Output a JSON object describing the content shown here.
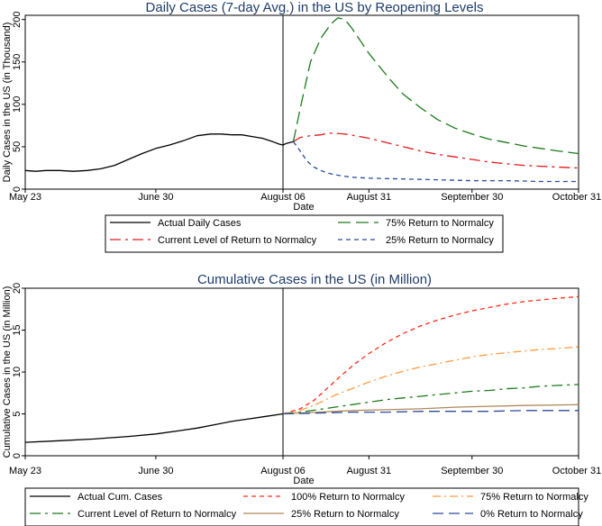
{
  "chart_data": [
    {
      "type": "line",
      "title": "Daily Cases (7-day Avg.) in the US by Reopening Levels",
      "xlabel": "Date",
      "ylabel": "Daily Cases in the US (in Thousand)",
      "x_ticks": [
        {
          "label": "May 23",
          "day": 0
        },
        {
          "label": "June 30",
          "day": 38
        },
        {
          "label": "August 06",
          "day": 75
        },
        {
          "label": "August 31",
          "day": 100
        },
        {
          "label": "September 30",
          "day": 130
        },
        {
          "label": "October 31",
          "day": 161
        }
      ],
      "y_ticks": [
        0,
        50,
        100,
        150,
        200
      ],
      "xlim": [
        0,
        161
      ],
      "ylim": [
        0,
        205
      ],
      "reference_line_day": 75,
      "grid": false,
      "legend_position": "bottom",
      "series": [
        {
          "name": "Actual Daily Cases",
          "color": "#000000",
          "dash": "",
          "x": [
            0,
            3,
            6,
            10,
            14,
            18,
            22,
            26,
            30,
            34,
            38,
            42,
            46,
            50,
            54,
            57,
            60,
            63,
            66,
            69,
            72,
            74,
            75,
            76,
            77,
            78
          ],
          "y": [
            22,
            21,
            22,
            22,
            21,
            22,
            24,
            28,
            35,
            42,
            48,
            52,
            57,
            63,
            65,
            65,
            64,
            64,
            62,
            60,
            56,
            53,
            52,
            54,
            55,
            56
          ]
        },
        {
          "name": "Current Level of Return to Normalcy",
          "color": "#e41a1c",
          "dash": "12 5 3 5",
          "x": [
            78,
            80,
            83,
            86,
            88,
            90,
            93,
            96,
            100,
            105,
            110,
            115,
            120,
            125,
            130,
            135,
            140,
            145,
            150,
            155,
            161
          ],
          "y": [
            56,
            61,
            63,
            64,
            66,
            66,
            65,
            63,
            60,
            55,
            50,
            45,
            41,
            38,
            35,
            32,
            30,
            28,
            27,
            26,
            25
          ]
        },
        {
          "name": "75% Return to Normalcy",
          "color": "#1a7a1a",
          "dash": "14 6",
          "x": [
            78,
            80,
            83,
            86,
            89,
            91,
            93,
            95,
            97,
            100,
            103,
            106,
            110,
            115,
            120,
            125,
            130,
            135,
            140,
            145,
            150,
            155,
            161
          ],
          "y": [
            56,
            95,
            150,
            178,
            195,
            202,
            200,
            190,
            178,
            160,
            145,
            130,
            112,
            96,
            82,
            72,
            65,
            59,
            55,
            51,
            48,
            45,
            42
          ]
        },
        {
          "name": "25% Return to Normalcy",
          "color": "#2b4c9c",
          "dash": "5 4",
          "x": [
            78,
            80,
            82,
            84,
            86,
            88,
            90,
            95,
            100,
            110,
            120,
            130,
            140,
            150,
            161
          ],
          "y": [
            56,
            45,
            33,
            26,
            22,
            19,
            17,
            14,
            13,
            12,
            11,
            10,
            10,
            9,
            9
          ]
        }
      ],
      "legend_rows": [
        [
          "Actual Daily Cases",
          "75% Return to Normalcy"
        ],
        [
          "Current Level of Return to Normalcy",
          "25% Return to Normalcy"
        ]
      ]
    },
    {
      "type": "line",
      "title": "Cumulative Cases in the US (in Million)",
      "xlabel": "Date",
      "ylabel": "Cumulative Cases in the US (in Million)",
      "x_ticks": [
        {
          "label": "May 23",
          "day": 0
        },
        {
          "label": "June 30",
          "day": 38
        },
        {
          "label": "August 06",
          "day": 75
        },
        {
          "label": "August 31",
          "day": 100
        },
        {
          "label": "September 30",
          "day": 130
        },
        {
          "label": "October 31",
          "day": 161
        }
      ],
      "y_ticks": [
        0,
        5,
        10,
        15,
        20
      ],
      "xlim": [
        0,
        161
      ],
      "ylim": [
        0,
        20
      ],
      "reference_line_day": 75,
      "grid": false,
      "legend_position": "bottom",
      "series": [
        {
          "name": "Actual Cum. Cases",
          "color": "#000000",
          "dash": "",
          "x": [
            0,
            10,
            20,
            30,
            38,
            45,
            50,
            55,
            60,
            65,
            70,
            75
          ],
          "y": [
            1.6,
            1.8,
            2.0,
            2.3,
            2.6,
            3.0,
            3.3,
            3.7,
            4.1,
            4.4,
            4.7,
            5.0
          ]
        },
        {
          "name": "100% Return to Normalcy",
          "color": "#ff2a1a",
          "dash": "5 4",
          "x": [
            75,
            80,
            84,
            88,
            92,
            96,
            100,
            105,
            110,
            115,
            120,
            125,
            130,
            135,
            140,
            145,
            150,
            155,
            161
          ],
          "y": [
            5.0,
            5.6,
            6.6,
            8.1,
            9.6,
            11.0,
            12.2,
            13.5,
            14.6,
            15.5,
            16.2,
            16.8,
            17.3,
            17.7,
            18.1,
            18.4,
            18.6,
            18.8,
            19.0
          ]
        },
        {
          "name": "75% Return to Normalcy",
          "color": "#ff9a3c",
          "dash": "9 4 2 4",
          "x": [
            75,
            80,
            85,
            90,
            95,
            100,
            105,
            110,
            115,
            120,
            125,
            130,
            135,
            140,
            145,
            150,
            155,
            161
          ],
          "y": [
            5.0,
            5.4,
            6.2,
            7.2,
            8.0,
            8.8,
            9.5,
            10.1,
            10.6,
            11.0,
            11.4,
            11.8,
            12.1,
            12.3,
            12.5,
            12.7,
            12.8,
            13.0
          ]
        },
        {
          "name": "Current Level of Return to Normalcy",
          "color": "#1a7a1a",
          "dash": "12 5 3 5",
          "x": [
            75,
            80,
            85,
            90,
            95,
            100,
            105,
            110,
            115,
            120,
            125,
            130,
            135,
            140,
            145,
            150,
            155,
            161
          ],
          "y": [
            5.0,
            5.2,
            5.5,
            5.8,
            6.1,
            6.4,
            6.7,
            6.9,
            7.1,
            7.3,
            7.5,
            7.7,
            7.8,
            8.0,
            8.1,
            8.3,
            8.4,
            8.5
          ]
        },
        {
          "name": "25% Return to Normalcy",
          "color": "#b0895a",
          "dash": "",
          "x": [
            75,
            85,
            95,
            105,
            115,
            125,
            135,
            145,
            161
          ],
          "y": [
            5.0,
            5.2,
            5.4,
            5.5,
            5.6,
            5.8,
            5.9,
            6.0,
            6.1
          ]
        },
        {
          "name": "0% Return to Normalcy",
          "color": "#2b4c9c",
          "dash": "12 6",
          "x": [
            75,
            85,
            95,
            105,
            115,
            125,
            135,
            145,
            161
          ],
          "y": [
            5.0,
            5.1,
            5.2,
            5.2,
            5.3,
            5.3,
            5.3,
            5.4,
            5.4
          ]
        }
      ],
      "legend_rows": [
        [
          "Actual Cum. Cases",
          "100% Return to Normalcy",
          "75% Return to Normalcy"
        ],
        [
          "Current Level of Return to Normalcy",
          "25% Return to Normalcy",
          "0% Return to Normalcy"
        ]
      ]
    }
  ]
}
